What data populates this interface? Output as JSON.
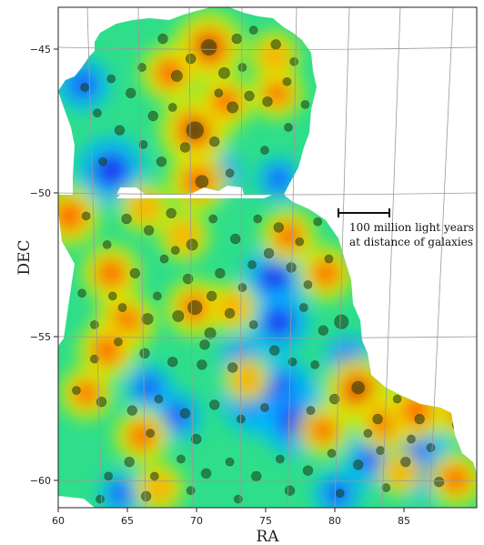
{
  "chart_data": {
    "type": "heatmap",
    "xlabel": "RA",
    "ylabel": "DEC",
    "x_ticks": [
      "60",
      "65",
      "70",
      "75",
      "80",
      "85"
    ],
    "y_ticks": [
      "−45",
      "−50",
      "−55",
      "−60"
    ],
    "xlim": [
      60,
      90
    ],
    "ylim": [
      -61,
      -43.5
    ],
    "grid": true,
    "colormap": "jet",
    "annotation": {
      "line1": "100 million light years",
      "line2": "at distance of galaxies",
      "scale_bar_ra": [
        80.2,
        83.8
      ],
      "scale_bar_dec": -50.7
    },
    "hotspots": [
      {
        "ra": 70.8,
        "dec": -44.9,
        "level": 1.0
      },
      {
        "ra": 69.8,
        "dec": -47.8,
        "level": 1.0
      },
      {
        "ra": 81.5,
        "dec": -56.9,
        "level": 0.95
      },
      {
        "ra": 70.0,
        "dec": -49.6,
        "level": 0.8
      },
      {
        "ra": 68.0,
        "dec": -45.8,
        "level": 0.75
      },
      {
        "ra": 64.8,
        "dec": -54.5,
        "level": 0.8
      },
      {
        "ra": 63.5,
        "dec": -55.5,
        "level": 0.75
      },
      {
        "ra": 69.8,
        "dec": -54.0,
        "level": 0.75
      },
      {
        "ra": 72.0,
        "dec": -46.8,
        "level": 0.7
      },
      {
        "ra": 63.8,
        "dec": -52.8,
        "level": 0.75
      },
      {
        "ra": 75.7,
        "dec": -46.5,
        "level": 0.65
      },
      {
        "ra": 75.5,
        "dec": -45.2,
        "level": 0.6
      },
      {
        "ra": 76.5,
        "dec": -51.5,
        "level": 0.7
      },
      {
        "ra": 66.0,
        "dec": -58.5,
        "level": 0.7
      },
      {
        "ra": 83.5,
        "dec": -58.0,
        "level": 0.8
      },
      {
        "ra": 85.7,
        "dec": -57.6,
        "level": 0.8
      },
      {
        "ra": 89.0,
        "dec": -57.6,
        "level": 0.75
      },
      {
        "ra": 88.5,
        "dec": -60.0,
        "level": 0.7
      },
      {
        "ra": 60.8,
        "dec": -50.8,
        "level": 0.8
      },
      {
        "ra": 79.2,
        "dec": -52.8,
        "level": 0.7
      },
      {
        "ra": 62.0,
        "dec": -57.0,
        "level": 0.65
      },
      {
        "ra": 72.5,
        "dec": -54.0,
        "level": 0.6
      },
      {
        "ra": 73.5,
        "dec": -56.5,
        "level": 0.55
      },
      {
        "ra": 67.2,
        "dec": -60.3,
        "level": 0.6
      },
      {
        "ra": 79.0,
        "dec": -58.3,
        "level": 0.65
      },
      {
        "ra": 69.0,
        "dec": -51.5,
        "level": 0.6
      },
      {
        "ra": 84.5,
        "dec": -59.8,
        "level": 0.5
      },
      {
        "ra": 66.2,
        "dec": -50.5,
        "level": 0.6
      }
    ],
    "voids": [
      {
        "ra": 63.8,
        "dec": -49.2,
        "level": 0.85
      },
      {
        "ra": 74.2,
        "dec": -57.2,
        "level": 0.9
      },
      {
        "ra": 76.0,
        "dec": -57.0,
        "level": 0.9
      },
      {
        "ra": 77.0,
        "dec": -58.0,
        "level": 0.85
      },
      {
        "ra": 75.5,
        "dec": -53.0,
        "level": 0.8
      },
      {
        "ra": 75.8,
        "dec": -54.5,
        "level": 0.75
      },
      {
        "ra": 86.0,
        "dec": -59.5,
        "level": 0.85
      },
      {
        "ra": 61.8,
        "dec": -46.2,
        "level": 0.6
      },
      {
        "ra": 71.5,
        "dec": -49.3,
        "level": 0.5
      },
      {
        "ra": 68.5,
        "dec": -57.8,
        "level": 0.55
      },
      {
        "ra": 73.2,
        "dec": -55.8,
        "level": 0.5
      },
      {
        "ra": 80.8,
        "dec": -55.8,
        "level": 0.55
      },
      {
        "ra": 82.5,
        "dec": -59.3,
        "level": 0.6
      },
      {
        "ra": 85.5,
        "dec": -58.8,
        "level": 0.6
      },
      {
        "ra": 66.5,
        "dec": -56.8,
        "level": 0.5
      },
      {
        "ra": 75.8,
        "dec": -49.5,
        "level": 0.45
      },
      {
        "ra": 64.5,
        "dec": -60.5,
        "level": 0.45
      },
      {
        "ra": 80.0,
        "dec": -60.5,
        "level": 0.5
      }
    ],
    "galaxies": [
      [
        70.8,
        -44.9,
        0.8
      ],
      [
        71.9,
        -45.8,
        0.5
      ],
      [
        69.5,
        -45.3,
        0.4
      ],
      [
        72.8,
        -44.6,
        0.4
      ],
      [
        74.0,
        -44.3,
        0.3
      ],
      [
        75.6,
        -44.8,
        0.4
      ],
      [
        76.9,
        -45.4,
        0.3
      ],
      [
        66.0,
        -45.6,
        0.3
      ],
      [
        67.5,
        -44.6,
        0.4
      ],
      [
        68.5,
        -45.9,
        0.5
      ],
      [
        65.2,
        -46.5,
        0.4
      ],
      [
        63.8,
        -46.0,
        0.3
      ],
      [
        62.8,
        -47.2,
        0.3
      ],
      [
        61.9,
        -46.3,
        0.3
      ],
      [
        64.4,
        -47.8,
        0.4
      ],
      [
        66.8,
        -47.3,
        0.4
      ],
      [
        68.2,
        -47.0,
        0.3
      ],
      [
        69.8,
        -47.8,
        0.9
      ],
      [
        71.2,
        -48.2,
        0.4
      ],
      [
        72.5,
        -47.0,
        0.5
      ],
      [
        73.7,
        -46.6,
        0.4
      ],
      [
        75.0,
        -46.8,
        0.4
      ],
      [
        76.4,
        -46.1,
        0.3
      ],
      [
        77.7,
        -46.9,
        0.3
      ],
      [
        78.5,
        -45.3,
        0.3
      ],
      [
        67.4,
        -48.9,
        0.4
      ],
      [
        70.3,
        -49.6,
        0.6
      ],
      [
        72.3,
        -49.3,
        0.3
      ],
      [
        74.8,
        -48.5,
        0.3
      ],
      [
        69.1,
        -48.4,
        0.4
      ],
      [
        66.1,
        -48.3,
        0.3
      ],
      [
        63.2,
        -48.9,
        0.3
      ],
      [
        76.5,
        -47.7,
        0.3
      ],
      [
        71.5,
        -46.5,
        0.3
      ],
      [
        73.2,
        -45.6,
        0.3
      ],
      [
        62.0,
        -50.8,
        0.3
      ],
      [
        63.5,
        -51.8,
        0.3
      ],
      [
        64.9,
        -50.9,
        0.4
      ],
      [
        66.5,
        -51.3,
        0.4
      ],
      [
        68.1,
        -50.7,
        0.4
      ],
      [
        69.6,
        -51.8,
        0.5
      ],
      [
        71.1,
        -50.9,
        0.3
      ],
      [
        72.7,
        -51.6,
        0.4
      ],
      [
        74.3,
        -50.9,
        0.3
      ],
      [
        75.8,
        -51.2,
        0.4
      ],
      [
        77.3,
        -51.7,
        0.3
      ],
      [
        78.6,
        -51.0,
        0.3
      ],
      [
        79.4,
        -52.3,
        0.3
      ],
      [
        76.7,
        -52.6,
        0.4
      ],
      [
        73.9,
        -52.5,
        0.3
      ],
      [
        71.6,
        -52.8,
        0.4
      ],
      [
        69.3,
        -53.0,
        0.4
      ],
      [
        67.6,
        -52.3,
        0.3
      ],
      [
        65.5,
        -52.8,
        0.4
      ],
      [
        63.9,
        -53.6,
        0.3
      ],
      [
        66.4,
        -54.4,
        0.5
      ],
      [
        68.6,
        -54.3,
        0.5
      ],
      [
        69.8,
        -54.0,
        0.7
      ],
      [
        70.9,
        -54.9,
        0.5
      ],
      [
        72.3,
        -54.2,
        0.4
      ],
      [
        74.0,
        -54.6,
        0.3
      ],
      [
        75.5,
        -55.5,
        0.4
      ],
      [
        77.6,
        -54.0,
        0.3
      ],
      [
        79.0,
        -54.8,
        0.4
      ],
      [
        80.3,
        -54.5,
        0.7
      ],
      [
        78.4,
        -56.0,
        0.3
      ],
      [
        76.8,
        -55.9,
        0.3
      ],
      [
        72.5,
        -56.1,
        0.4
      ],
      [
        70.3,
        -56.0,
        0.4
      ],
      [
        68.2,
        -55.9,
        0.4
      ],
      [
        66.2,
        -55.6,
        0.4
      ],
      [
        64.3,
        -55.2,
        0.3
      ],
      [
        62.6,
        -55.8,
        0.3
      ],
      [
        61.3,
        -56.9,
        0.3
      ],
      [
        63.1,
        -57.3,
        0.4
      ],
      [
        65.3,
        -57.6,
        0.4
      ],
      [
        67.2,
        -57.2,
        0.3
      ],
      [
        69.1,
        -57.7,
        0.4
      ],
      [
        71.2,
        -57.4,
        0.4
      ],
      [
        73.1,
        -57.9,
        0.3
      ],
      [
        74.8,
        -57.5,
        0.3
      ],
      [
        78.1,
        -57.6,
        0.3
      ],
      [
        79.8,
        -57.2,
        0.4
      ],
      [
        81.5,
        -56.8,
        0.6
      ],
      [
        82.9,
        -57.9,
        0.4
      ],
      [
        84.3,
        -57.2,
        0.3
      ],
      [
        85.9,
        -57.9,
        0.4
      ],
      [
        87.3,
        -57.0,
        0.3
      ],
      [
        88.6,
        -58.1,
        0.4
      ],
      [
        86.7,
        -58.9,
        0.3
      ],
      [
        84.9,
        -59.4,
        0.4
      ],
      [
        83.1,
        -59.0,
        0.3
      ],
      [
        81.5,
        -59.5,
        0.4
      ],
      [
        79.6,
        -59.1,
        0.3
      ],
      [
        77.9,
        -59.7,
        0.4
      ],
      [
        75.9,
        -59.3,
        0.3
      ],
      [
        74.2,
        -59.9,
        0.4
      ],
      [
        72.3,
        -59.4,
        0.3
      ],
      [
        70.6,
        -59.8,
        0.4
      ],
      [
        68.8,
        -59.3,
        0.3
      ],
      [
        66.9,
        -59.9,
        0.3
      ],
      [
        65.1,
        -59.4,
        0.4
      ],
      [
        63.6,
        -59.9,
        0.3
      ],
      [
        63.0,
        -60.7,
        0.3
      ],
      [
        66.3,
        -60.6,
        0.4
      ],
      [
        69.5,
        -60.4,
        0.3
      ],
      [
        72.9,
        -60.7,
        0.3
      ],
      [
        76.6,
        -60.4,
        0.4
      ],
      [
        80.2,
        -60.5,
        0.3
      ],
      [
        83.5,
        -60.3,
        0.3
      ],
      [
        87.3,
        -60.1,
        0.4
      ],
      [
        69.9,
        -58.6,
        0.4
      ],
      [
        66.6,
        -58.4,
        0.3
      ],
      [
        71.0,
        -53.6,
        0.4
      ],
      [
        67.1,
        -53.6,
        0.3
      ],
      [
        73.2,
        -53.3,
        0.3
      ],
      [
        75.1,
        -52.1,
        0.4
      ],
      [
        77.9,
        -53.2,
        0.3
      ],
      [
        64.6,
        -54.0,
        0.3
      ],
      [
        68.4,
        -52.0,
        0.3
      ],
      [
        70.5,
        -55.3,
        0.4
      ],
      [
        78.7,
        -50.5,
        0.3
      ],
      [
        61.7,
        -53.5,
        0.3
      ],
      [
        62.6,
        -54.6,
        0.3
      ],
      [
        85.3,
        -58.6,
        0.3
      ],
      [
        82.2,
        -58.4,
        0.3
      ]
    ]
  }
}
